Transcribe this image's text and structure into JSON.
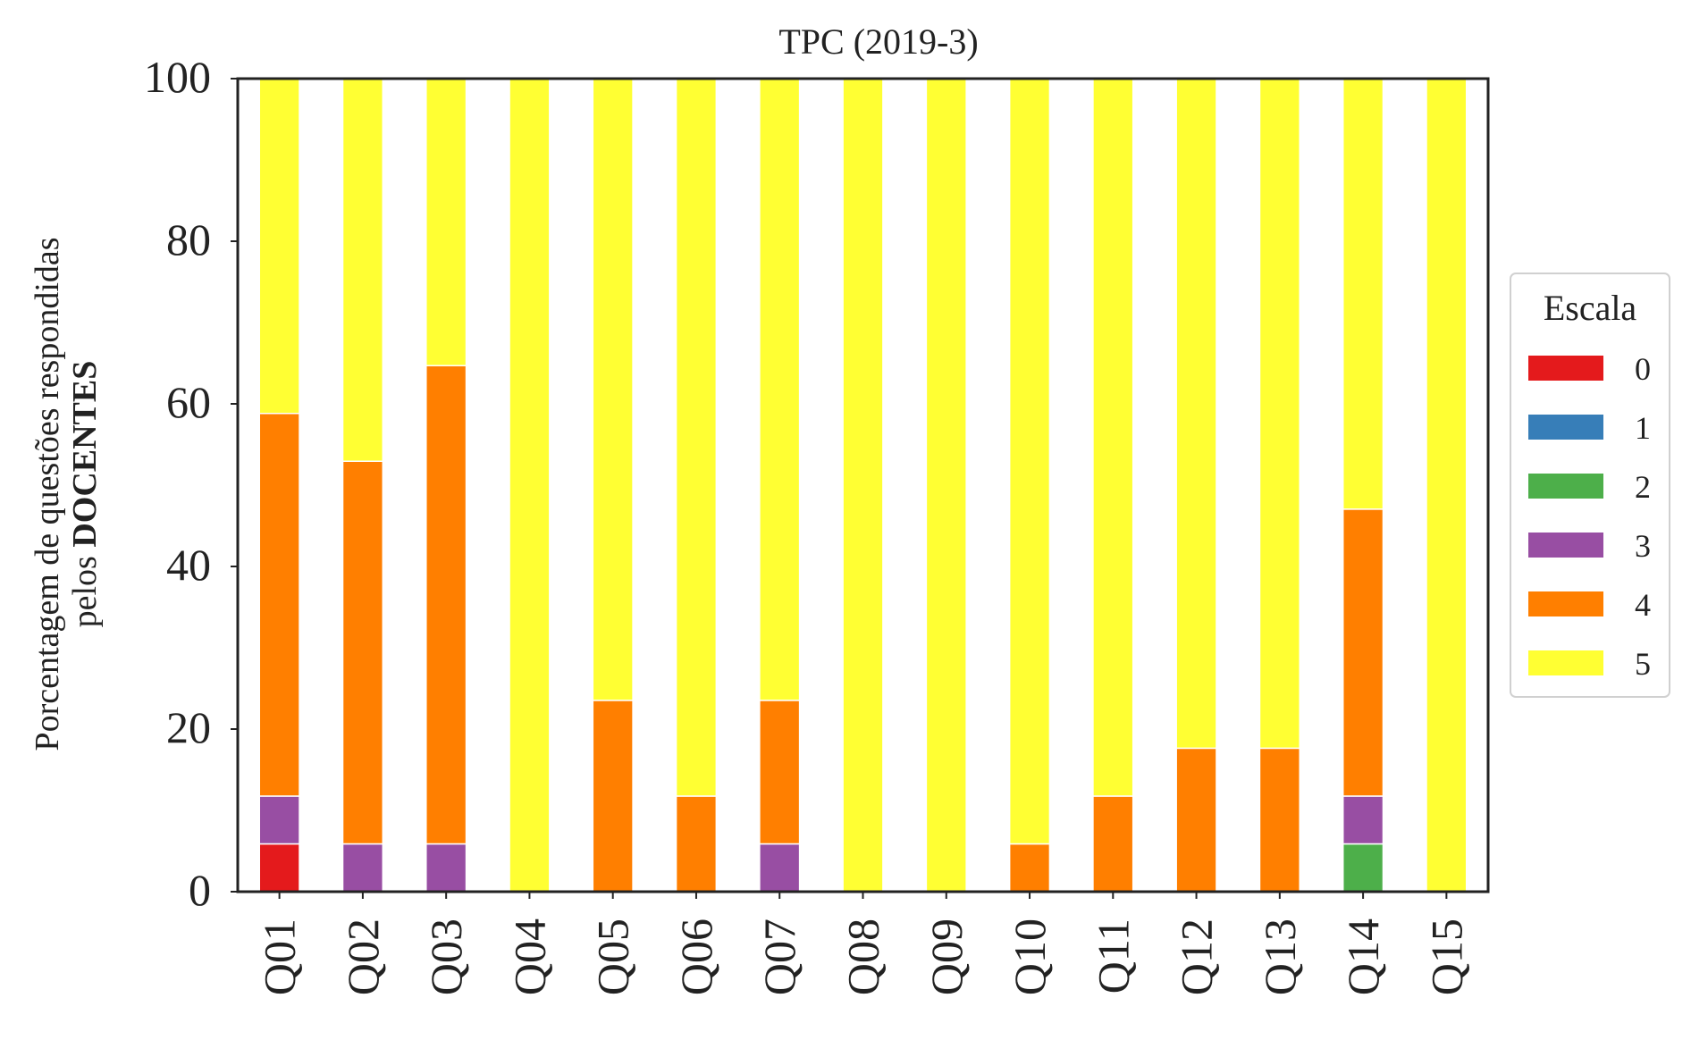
{
  "chart_data": {
    "type": "bar",
    "stacked": true,
    "title": "TPC (2019-3)",
    "xlabel": "",
    "ylabel_line1": "Porcentagem de questões respondidas",
    "ylabel_line2_prefix": "pelos ",
    "ylabel_line2_bold": "DOCENTES",
    "ylim": [
      0,
      100
    ],
    "yticks": [
      "0",
      "20",
      "40",
      "60",
      "80",
      "100"
    ],
    "grid": false,
    "legend": {
      "title": "Escala",
      "placement": "center-right, outside plot"
    },
    "categories": [
      "Q01",
      "Q02",
      "Q03",
      "Q04",
      "Q05",
      "Q06",
      "Q07",
      "Q08",
      "Q09",
      "Q10",
      "Q11",
      "Q12",
      "Q13",
      "Q14",
      "Q15"
    ],
    "series": [
      {
        "name": "0",
        "color": "#e41a1c",
        "values": [
          5.88,
          0,
          0,
          0,
          0,
          0,
          0,
          0,
          0,
          0,
          0,
          0,
          0,
          0,
          0
        ]
      },
      {
        "name": "1",
        "color": "#377eb8",
        "values": [
          0,
          0,
          0,
          0,
          0,
          0,
          0,
          0,
          0,
          0,
          0,
          0,
          0,
          0,
          0
        ]
      },
      {
        "name": "2",
        "color": "#4daf4a",
        "values": [
          0,
          0,
          0,
          0,
          0,
          0,
          0,
          0,
          0,
          0,
          0,
          0,
          0,
          5.88,
          0
        ]
      },
      {
        "name": "3",
        "color": "#984ea3",
        "values": [
          5.88,
          5.88,
          5.88,
          0,
          0,
          0,
          5.88,
          0,
          0,
          0,
          0,
          0,
          0,
          5.88,
          0
        ]
      },
      {
        "name": "4",
        "color": "#ff7f00",
        "values": [
          47.06,
          47.06,
          58.82,
          0,
          23.53,
          11.76,
          17.65,
          0,
          0,
          5.88,
          11.76,
          17.65,
          17.65,
          35.29,
          0
        ]
      },
      {
        "name": "5",
        "color": "#ffff33",
        "values": [
          41.18,
          47.06,
          35.29,
          100,
          76.47,
          88.24,
          76.47,
          100,
          100,
          94.12,
          88.24,
          82.35,
          82.35,
          52.94,
          100
        ]
      }
    ]
  }
}
